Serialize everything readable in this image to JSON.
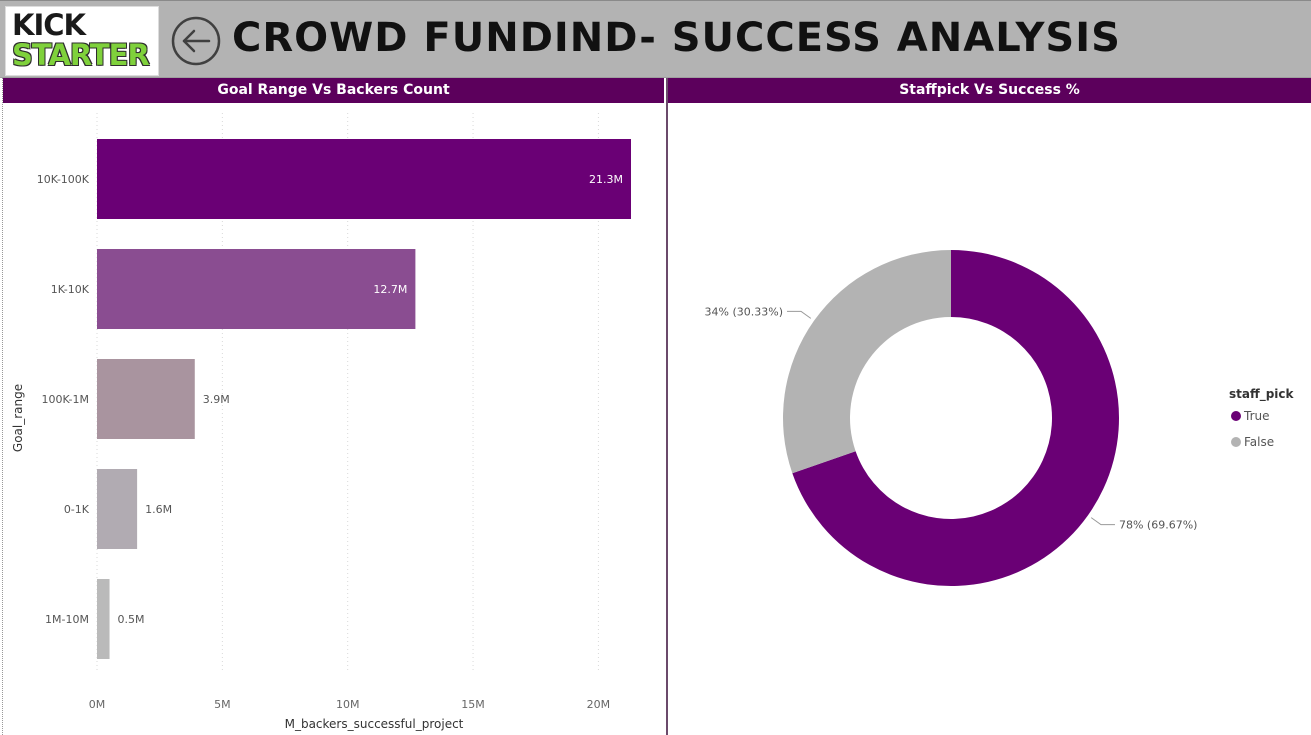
{
  "header": {
    "logo_line1": "KICK",
    "logo_line2": "STARTER",
    "back_icon": "back-arrow-icon",
    "title": "CROWD FUNDIND- SUCCESS ANALYSIS"
  },
  "left_panel": {
    "title": "Goal Range Vs Backers Count",
    "chart_data": {
      "type": "bar",
      "orientation": "horizontal",
      "categories": [
        "10K-100K",
        "1K-10K",
        "100K-1M",
        "0-1K",
        "1M-10M"
      ],
      "values": [
        21.3,
        12.7,
        3.9,
        1.6,
        0.5
      ],
      "value_labels": [
        "21.3M",
        "12.7M",
        "3.9M",
        "1.6M",
        "0.5M"
      ],
      "bar_colors": [
        "#6a0075",
        "#8a4d91",
        "#a9949f",
        "#b1abb2",
        "#bababa"
      ],
      "x_ticks": [
        0,
        5,
        10,
        15,
        20
      ],
      "x_tick_labels": [
        "0M",
        "5M",
        "10M",
        "15M",
        "20M"
      ],
      "xlim": [
        0,
        21.3
      ],
      "xlabel": "M_backers_successful_project",
      "ylabel": "Goal_range",
      "grid": "vertical dotted"
    }
  },
  "right_panel": {
    "title": "Staffpick Vs Success %",
    "chart_data": {
      "type": "pie",
      "variant": "donut",
      "slices": [
        {
          "label": "True",
          "percent": 69.67,
          "data_label": "78% (69.67%)",
          "color": "#6a0075"
        },
        {
          "label": "False",
          "percent": 30.33,
          "data_label": "34% (30.33%)",
          "color": "#b3b3b3"
        }
      ],
      "legend_title": "staff_pick",
      "legend_position": "right"
    }
  }
}
